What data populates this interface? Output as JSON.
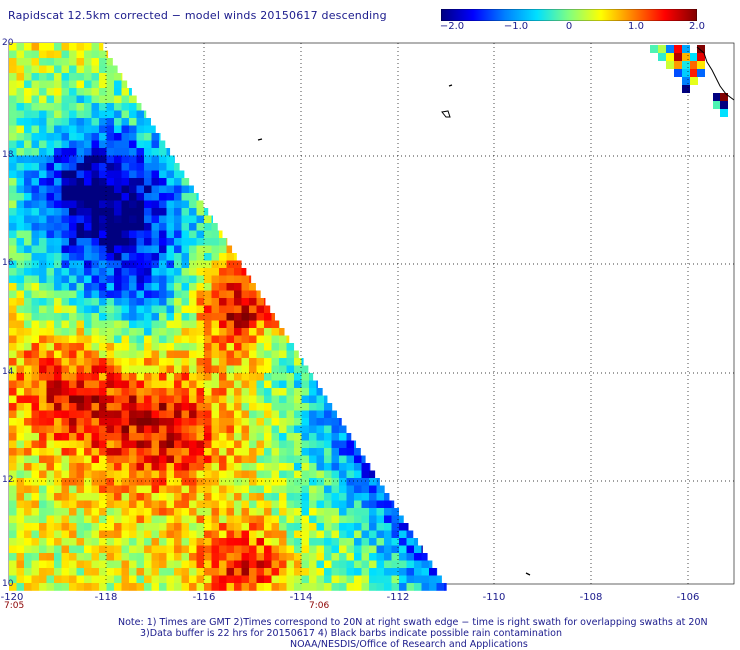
{
  "title": "Rapidscat 12.5km corrected − model winds 20150617 descending",
  "colorbar": {
    "ticks": [
      "−2.0",
      "−1.0",
      "0",
      "1.0",
      "2.0"
    ],
    "tick_values": [
      -2.0,
      -1.0,
      0,
      1.0,
      2.0
    ],
    "range": [
      -2.0,
      2.0
    ],
    "colors": [
      "#000080",
      "#0000ff",
      "#0080ff",
      "#00e0ff",
      "#80ff80",
      "#ffff00",
      "#ff8000",
      "#ff0000",
      "#800000"
    ]
  },
  "y_axis": {
    "ticks": [
      "20",
      "18",
      "16",
      "14",
      "12",
      "10"
    ],
    "range": [
      10,
      20
    ]
  },
  "x_axis": {
    "ticks": [
      "-120",
      "-118",
      "-116",
      "-114",
      "-112",
      "-110",
      "-108",
      "-106"
    ],
    "range": [
      -120,
      -105
    ]
  },
  "times": [
    "7:05",
    "7:06"
  ],
  "notes": [
    "Note: 1) Times are GMT 2)Times correspond to 20N at right swath edge − time is right swath for overlapping swaths at 20N",
    "3)Data buffer is 22 hrs for 20150617 4) Black barbs indicate possible rain contamination",
    "NOAA/NESDIS/Office of Research and Applications"
  ],
  "colors": {
    "text": "#1a1a8c",
    "time_text": "#8b0000",
    "grid": "#000000"
  }
}
